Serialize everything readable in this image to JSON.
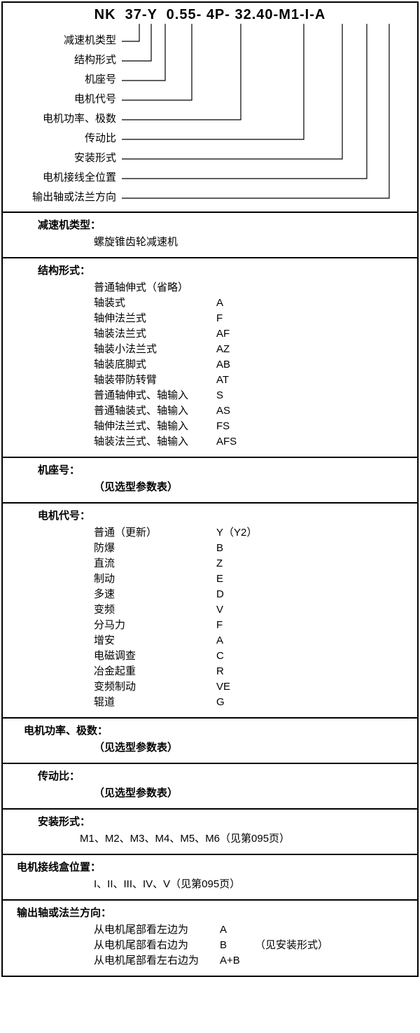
{
  "productCode": {
    "parts": [
      "NK",
      "37",
      "-",
      "Y",
      "0.55",
      "-",
      "4P",
      "-",
      "32.40",
      "-",
      "M1",
      "-",
      "I",
      "-",
      "A"
    ],
    "display": "NK  37-Y  0.55- 4P- 32.40-M1-I-A"
  },
  "callouts": [
    "减速机类型",
    "结构形式",
    "机座号",
    "电机代号",
    "电机功率、极数",
    "传动比",
    "安装形式",
    "电机接线全位置",
    "输出轴或法兰方向"
  ],
  "sections": [
    {
      "title": "减速机类型：",
      "body_text": "螺旋锥齿轮减速机"
    },
    {
      "title": "结构形式：",
      "rows": [
        {
          "label": "普通轴伸式（省略）",
          "code": ""
        },
        {
          "label": "轴装式",
          "code": "A"
        },
        {
          "label": "轴伸法兰式",
          "code": "F"
        },
        {
          "label": "轴装法兰式",
          "code": "AF"
        },
        {
          "label": "轴装小法兰式",
          "code": "AZ"
        },
        {
          "label": "轴装底脚式",
          "code": "AB"
        },
        {
          "label": "轴装带防转臂",
          "code": "AT"
        },
        {
          "label": "普通轴伸式、轴输入",
          "code": "S"
        },
        {
          "label": "普通轴装式、轴输入",
          "code": "AS"
        },
        {
          "label": "轴伸法兰式、轴输入",
          "code": "FS"
        },
        {
          "label": "轴装法兰式、轴输入",
          "code": "AFS"
        }
      ]
    },
    {
      "title": "机座号：",
      "body_text": "（见选型参数表）",
      "body_bold": true
    },
    {
      "title": "电机代号：",
      "rows": [
        {
          "label": "普通（更新）",
          "code": "Y（Y2）"
        },
        {
          "label": "防爆",
          "code": "B"
        },
        {
          "label": "直流",
          "code": "Z"
        },
        {
          "label": "制动",
          "code": "E"
        },
        {
          "label": "多速",
          "code": "D"
        },
        {
          "label": "变频",
          "code": "V"
        },
        {
          "label": "分马力",
          "code": "F"
        },
        {
          "label": "增安",
          "code": "A"
        },
        {
          "label": "电磁调查",
          "code": "C"
        },
        {
          "label": "冶金起重",
          "code": "R"
        },
        {
          "label": "变频制动",
          "code": "VE"
        },
        {
          "label": "辊道",
          "code": "G"
        }
      ]
    },
    {
      "title": "电机功率、极数：",
      "body_text": "（见选型参数表）",
      "body_bold": true,
      "tight": true
    },
    {
      "title": "传动比：",
      "body_text": "（见选型参数表）",
      "body_bold": true
    },
    {
      "title": "安装形式：",
      "body_text": "M1、M2、M3、M4、M5、M6（见第095页）",
      "inline": true
    },
    {
      "title": "电机接线盒位置：",
      "body_text": "I、II、III、IV、V（见第095页）",
      "tight2": true
    },
    {
      "title": "输出轴或法兰方向：",
      "rows3": [
        {
          "label": "从电机尾部看左边为",
          "code": "A",
          "extra": ""
        },
        {
          "label": "从电机尾部看右边为",
          "code": "B",
          "extra": "（见安装形式）"
        },
        {
          "label": "从电机尾部看左右边为",
          "code": "A+B",
          "extra": ""
        }
      ],
      "tight2": true
    }
  ]
}
